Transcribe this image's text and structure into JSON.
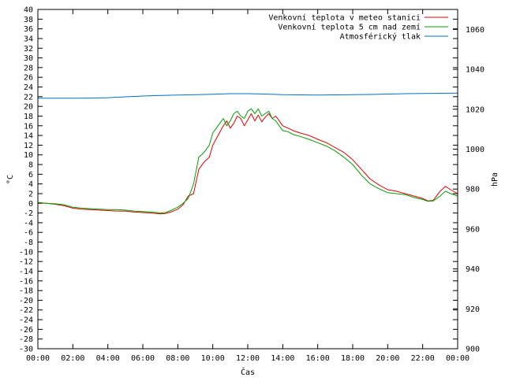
{
  "chart_data": {
    "type": "line",
    "title": "",
    "xlabel": "Čas",
    "ylabel": "°C",
    "y2label": "hPa",
    "grid": false,
    "legend_position": "top-right",
    "x_ticks": [
      "00:00",
      "02:00",
      "04:00",
      "06:00",
      "08:00",
      "10:00",
      "12:00",
      "14:00",
      "16:00",
      "18:00",
      "20:00",
      "22:00",
      "00:00"
    ],
    "x_range_hours": [
      0,
      24
    ],
    "y_ticks": [
      -30,
      -28,
      -26,
      -24,
      -22,
      -20,
      -18,
      -16,
      -14,
      -12,
      -10,
      -8,
      -6,
      -4,
      -2,
      0,
      2,
      4,
      6,
      8,
      10,
      12,
      14,
      16,
      18,
      20,
      22,
      24,
      26,
      28,
      30,
      32,
      34,
      36,
      38,
      40
    ],
    "ylim": [
      -30,
      40
    ],
    "y2_ticks": [
      900,
      920,
      940,
      960,
      980,
      1000,
      1020,
      1040,
      1060
    ],
    "y2lim": [
      900,
      1070
    ],
    "series": [
      {
        "name": "Venkovní teplota v meteo stanici",
        "color": "#e00000",
        "axis": "y",
        "x": [
          0,
          0.5,
          1,
          1.5,
          2,
          2.5,
          3,
          3.5,
          4,
          4.5,
          5,
          5.5,
          6,
          6.5,
          7,
          7.3,
          7.6,
          8,
          8.3,
          8.6,
          8.9,
          9.2,
          9.5,
          9.8,
          10,
          10.3,
          10.6,
          10.8,
          11,
          11.2,
          11.4,
          11.6,
          11.8,
          12,
          12.2,
          12.4,
          12.6,
          12.8,
          13,
          13.2,
          13.4,
          13.6,
          13.8,
          14,
          14.3,
          14.6,
          15,
          15.5,
          16,
          16.5,
          17,
          17.5,
          18,
          18.5,
          19,
          19.5,
          20,
          20.5,
          21,
          21.5,
          22,
          22.3,
          22.6,
          23,
          23.3,
          23.6,
          24
        ],
        "values": [
          0.1,
          0.0,
          -0.2,
          -0.5,
          -1.0,
          -1.2,
          -1.3,
          -1.4,
          -1.5,
          -1.6,
          -1.6,
          -1.8,
          -1.9,
          -2.0,
          -2.2,
          -2.1,
          -1.8,
          -1.2,
          -0.3,
          1.5,
          2.0,
          7.0,
          8.5,
          9.5,
          12.0,
          14.0,
          16.0,
          17.0,
          15.5,
          16.5,
          18.0,
          17.5,
          16.0,
          17.2,
          18.5,
          17.0,
          18.2,
          16.8,
          17.8,
          18.5,
          17.5,
          18.0,
          17.0,
          16.0,
          15.5,
          15.0,
          14.5,
          14.0,
          13.2,
          12.5,
          11.5,
          10.5,
          9.0,
          7.0,
          5.0,
          3.8,
          2.8,
          2.5,
          2.0,
          1.5,
          1.0,
          0.5,
          0.6,
          2.5,
          3.5,
          2.8,
          2.0
        ]
      },
      {
        "name": "Venkovní teplota 5 cm nad zemí",
        "color": "#00a000",
        "axis": "y",
        "x": [
          0,
          0.5,
          1,
          1.5,
          2,
          2.5,
          3,
          3.5,
          4,
          4.5,
          5,
          5.5,
          6,
          6.5,
          7,
          7.3,
          7.6,
          8,
          8.3,
          8.6,
          8.9,
          9.2,
          9.5,
          9.8,
          10,
          10.3,
          10.6,
          10.8,
          11,
          11.2,
          11.4,
          11.6,
          11.8,
          12,
          12.2,
          12.4,
          12.6,
          12.8,
          13,
          13.2,
          13.4,
          13.6,
          13.8,
          14,
          14.3,
          14.6,
          15,
          15.5,
          16,
          16.5,
          17,
          17.5,
          18,
          18.5,
          19,
          19.5,
          20,
          20.5,
          21,
          21.5,
          22,
          22.3,
          22.6,
          23,
          23.3,
          23.6,
          24
        ],
        "values": [
          0.2,
          0.0,
          -0.1,
          -0.3,
          -0.8,
          -1.0,
          -1.1,
          -1.2,
          -1.3,
          -1.3,
          -1.4,
          -1.6,
          -1.7,
          -1.8,
          -2.0,
          -1.9,
          -1.5,
          -0.8,
          0.0,
          1.0,
          4.0,
          9.5,
          10.5,
          12.0,
          14.5,
          16.0,
          17.5,
          16.0,
          17.0,
          18.5,
          19.0,
          18.0,
          17.5,
          19.0,
          19.5,
          18.5,
          19.5,
          18.0,
          18.5,
          19.0,
          17.5,
          17.0,
          16.0,
          15.0,
          14.8,
          14.2,
          13.8,
          13.2,
          12.5,
          11.8,
          10.8,
          9.5,
          8.0,
          5.8,
          4.0,
          3.0,
          2.2,
          2.0,
          1.8,
          1.2,
          0.8,
          0.4,
          0.5,
          1.5,
          2.5,
          2.0,
          1.5
        ]
      },
      {
        "name": "Atmosférický tlak",
        "color": "#0070c0",
        "axis": "y2",
        "x": [
          0,
          1,
          2,
          3,
          4,
          5,
          6,
          7,
          8,
          9,
          10,
          11,
          12,
          13,
          14,
          15,
          16,
          17,
          18,
          19,
          20,
          21,
          22,
          23,
          24
        ],
        "values": [
          1025.5,
          1025.5,
          1025.5,
          1025.6,
          1025.8,
          1026.2,
          1026.6,
          1026.9,
          1027.1,
          1027.3,
          1027.5,
          1027.8,
          1027.8,
          1027.6,
          1027.3,
          1027.2,
          1027.1,
          1027.2,
          1027.3,
          1027.4,
          1027.6,
          1027.8,
          1027.9,
          1028.0,
          1028.1
        ]
      }
    ]
  }
}
